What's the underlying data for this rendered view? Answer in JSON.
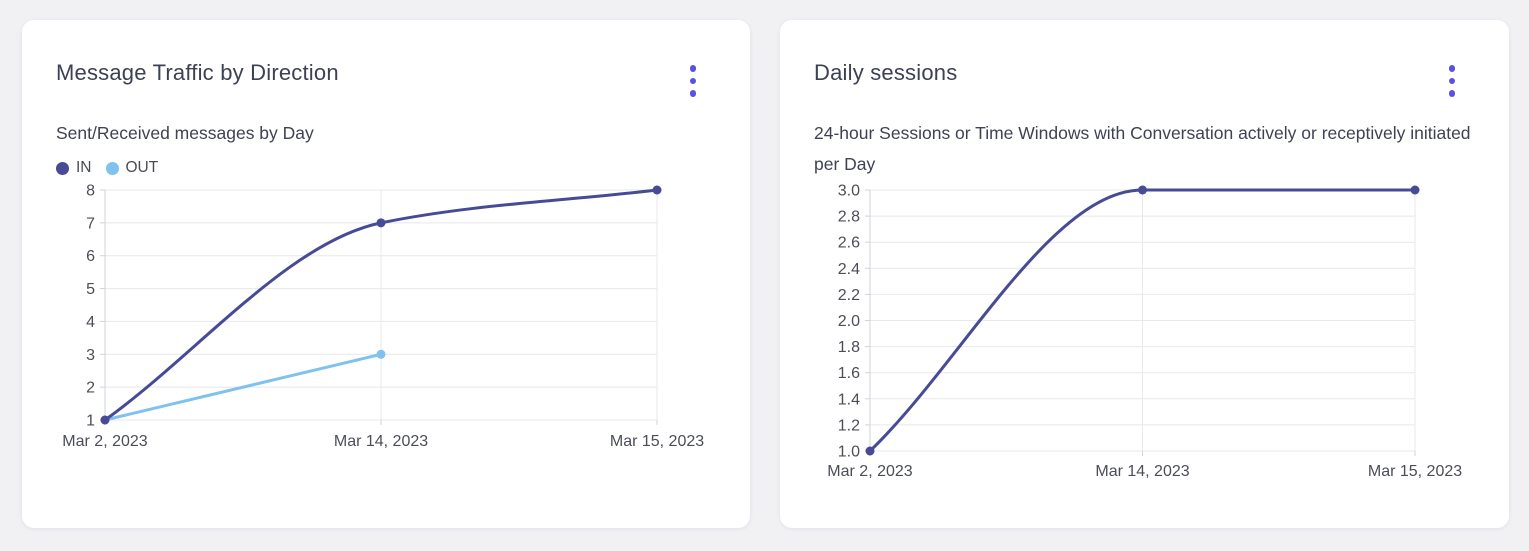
{
  "page": {
    "background": "#f1f1f4"
  },
  "colors": {
    "grid": "#e8e8ed",
    "axis": "#d2d3da",
    "accent_menu": "#5a50e8",
    "series_in": "#474b96",
    "series_out": "#7fc1ef"
  },
  "cards": [
    {
      "title": "Message Traffic by Direction",
      "subtitle": "Sent/Received messages by Day",
      "menu_icon": "kebab-menu-icon"
    },
    {
      "title": "Daily sessions",
      "subtitle": "24-hour Sessions or Time Windows with Conversation actively or receptively initiated per Day",
      "menu_icon": "kebab-menu-icon"
    }
  ],
  "chart_data": [
    {
      "type": "line",
      "title": "Message Traffic by Direction",
      "subtitle": "Sent/Received messages by Day",
      "categories": [
        "Mar 2, 2023",
        "Mar 14, 2023",
        "Mar 15, 2023"
      ],
      "series": [
        {
          "name": "IN",
          "color": "#474b96",
          "values": [
            1,
            7,
            8
          ]
        },
        {
          "name": "OUT",
          "color": "#7fc1ef",
          "values": [
            1,
            3,
            null
          ]
        }
      ],
      "ylim": [
        1,
        8
      ],
      "yticks": [
        "1",
        "2",
        "3",
        "4",
        "5",
        "6",
        "7",
        "8"
      ],
      "grid": true,
      "legend_position": "top-left",
      "curve": "monotone"
    },
    {
      "type": "line",
      "title": "Daily sessions",
      "subtitle": "24-hour Sessions or Time Windows with Conversation actively or receptively initiated per Day",
      "categories": [
        "Mar 2, 2023",
        "Mar 14, 2023",
        "Mar 15, 2023"
      ],
      "series": [
        {
          "name": "Daily sessions",
          "color": "#474b96",
          "values": [
            1.0,
            3.0,
            3.0
          ]
        }
      ],
      "ylim": [
        1.0,
        3.0
      ],
      "yticks": [
        "1.0",
        "1.2",
        "1.4",
        "1.6",
        "1.8",
        "2.0",
        "2.2",
        "2.4",
        "2.6",
        "2.8",
        "3.0"
      ],
      "grid": true,
      "legend_position": "none",
      "curve": "monotone"
    }
  ]
}
